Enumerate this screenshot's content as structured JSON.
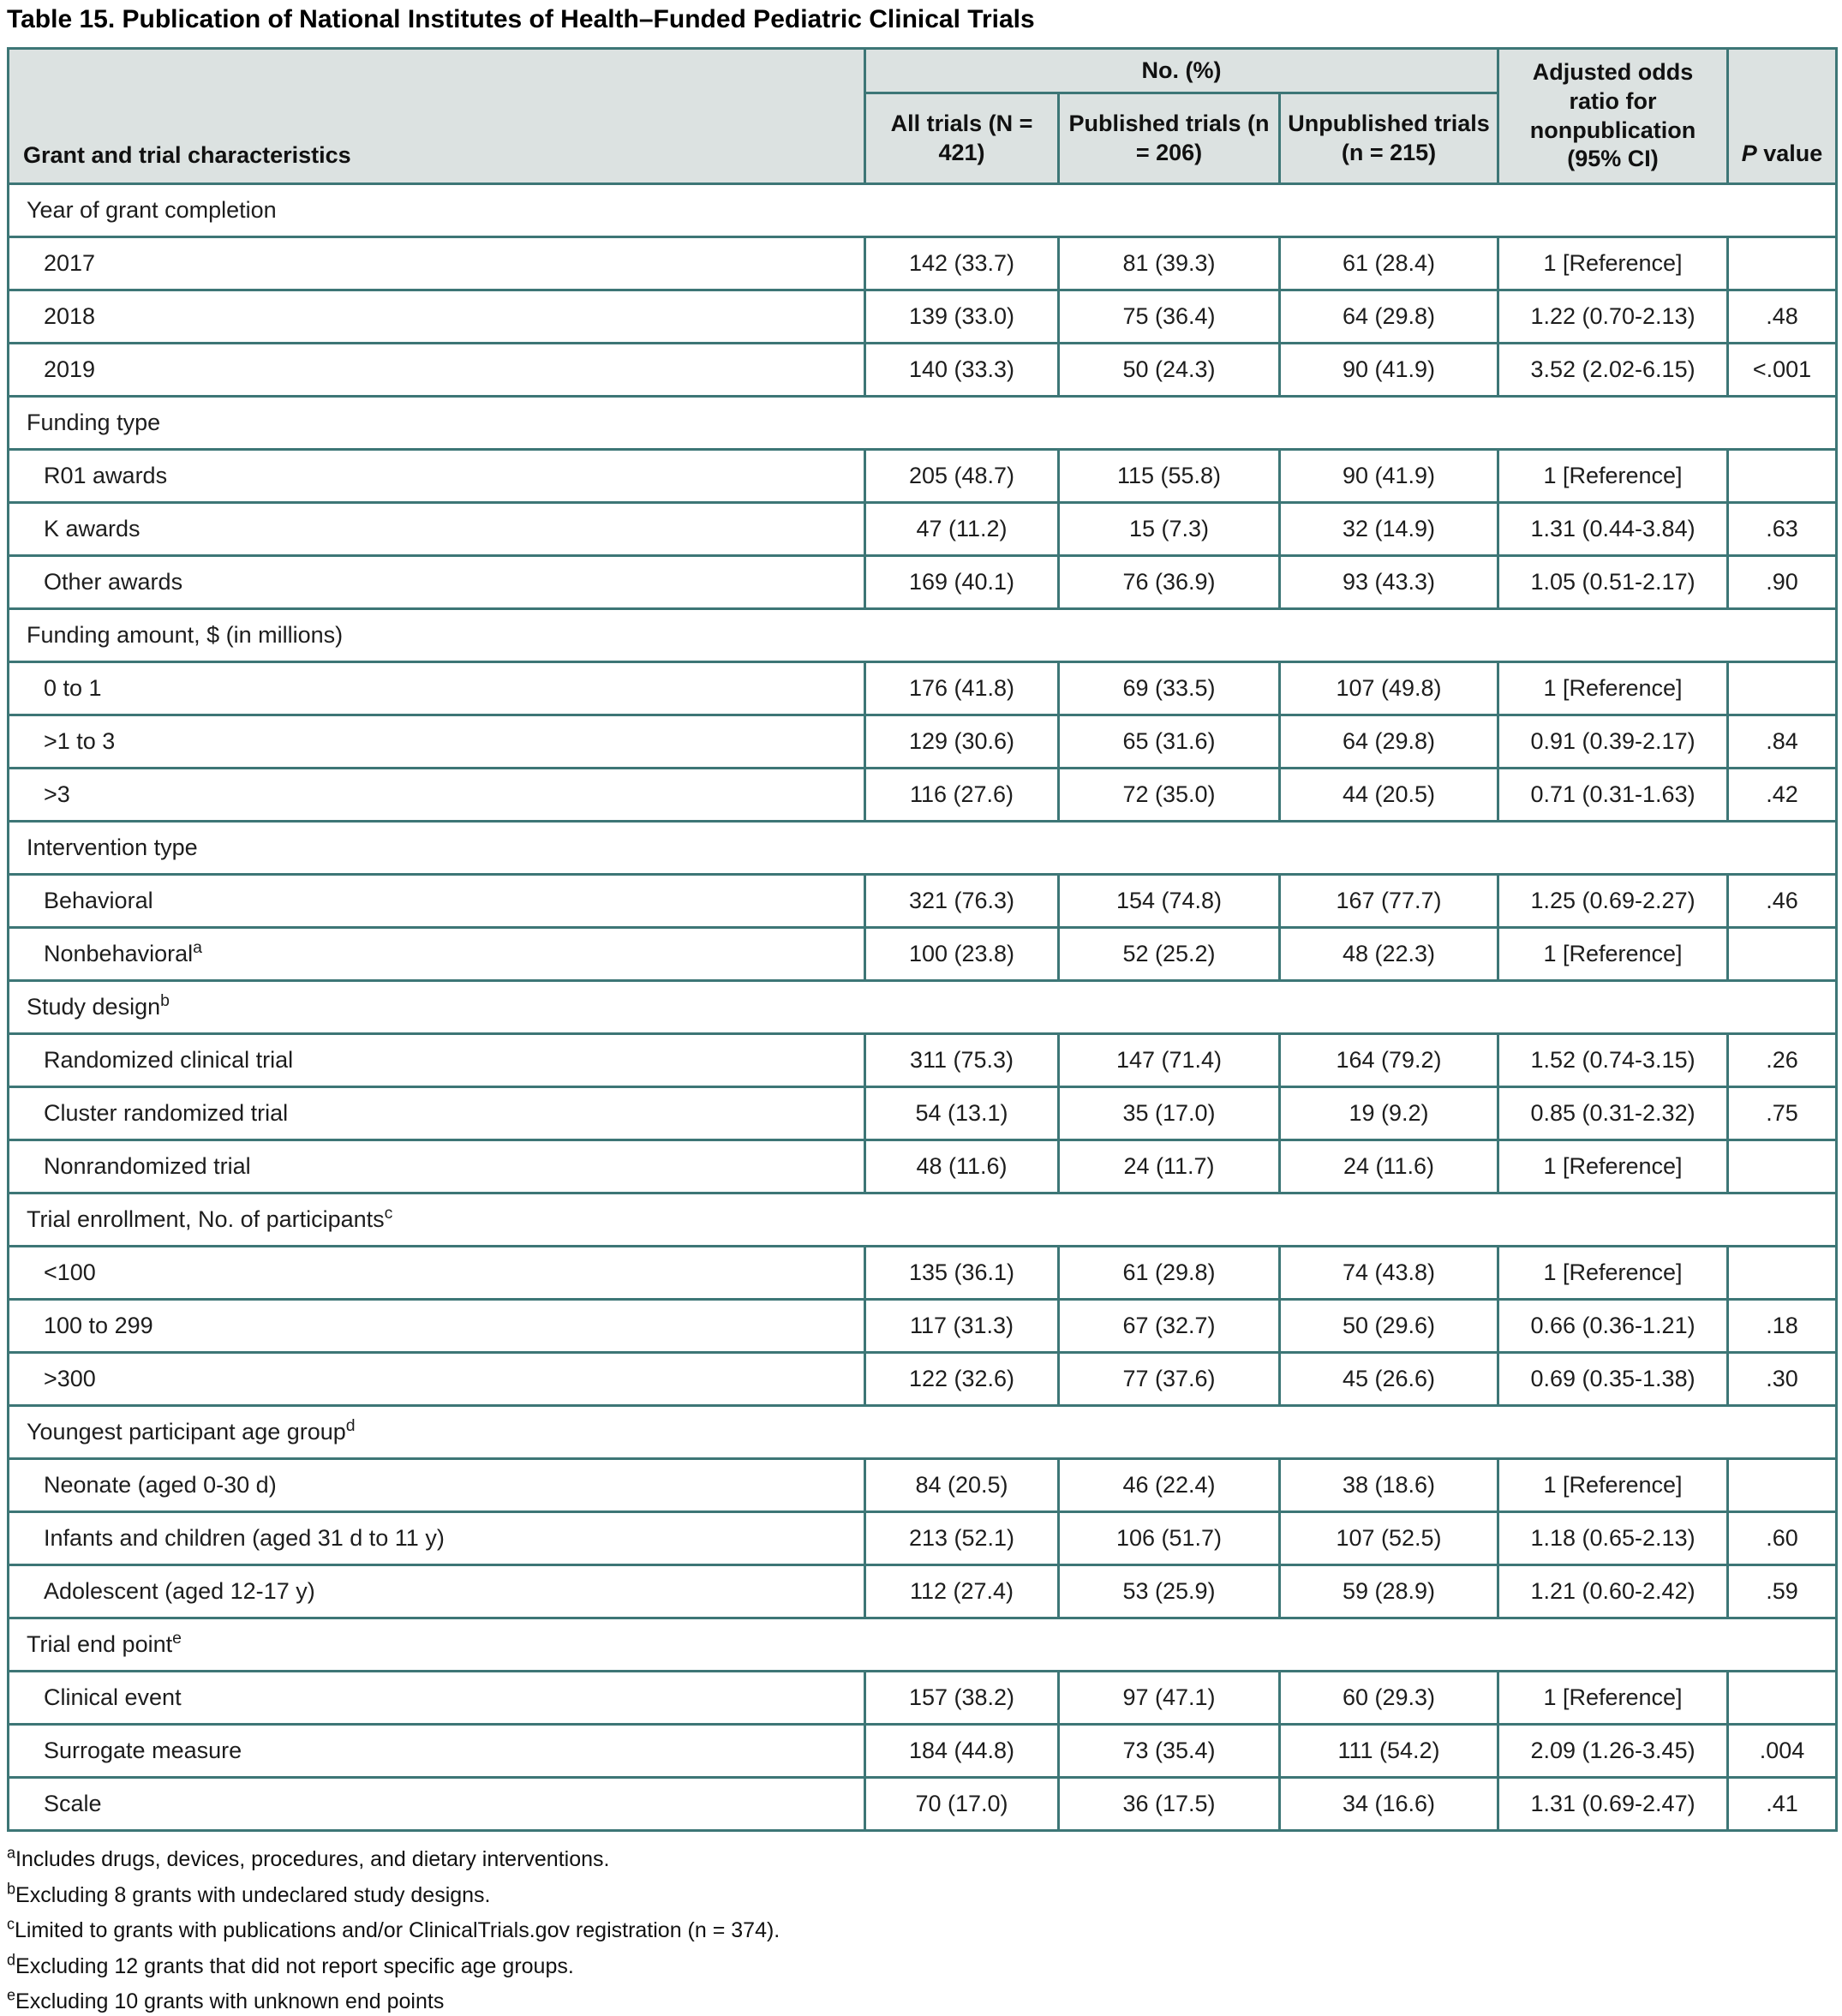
{
  "title": "Table 15. Publication of National Institutes of Health–Funded Pediatric Clinical Trials",
  "colors": {
    "border_teal": "#3d7676",
    "header_background": "#dce2e1",
    "text": "#1d1d1d"
  },
  "table": {
    "header": {
      "characteristics": "Grant and trial characteristics",
      "group": "No. (%)",
      "all_trials": "All trials (N = 421)",
      "published": "Published trials (n = 206)",
      "unpublished": "Unpublished trials (n = 215)",
      "odds_ratio": "Adjusted odds ratio for nonpublication (95% CI)",
      "p_italic": "P",
      "p_rest": " value"
    },
    "sections": [
      {
        "label": "Year of grant completion",
        "sup": "",
        "rows": [
          {
            "label": "2017",
            "sup": "",
            "cells": [
              "142 (33.7)",
              "81 (39.3)",
              "61 (28.4)",
              "1 [Reference]",
              ""
            ]
          },
          {
            "label": "2018",
            "sup": "",
            "cells": [
              "139 (33.0)",
              "75 (36.4)",
              "64 (29.8)",
              "1.22 (0.70-2.13)",
              ".48"
            ]
          },
          {
            "label": "2019",
            "sup": "",
            "cells": [
              "140 (33.3)",
              "50 (24.3)",
              "90 (41.9)",
              "3.52 (2.02-6.15)",
              "<.001"
            ]
          }
        ]
      },
      {
        "label": "Funding type",
        "sup": "",
        "rows": [
          {
            "label": "R01 awards",
            "sup": "",
            "cells": [
              "205 (48.7)",
              "115 (55.8)",
              "90 (41.9)",
              "1 [Reference]",
              ""
            ]
          },
          {
            "label": "K awards",
            "sup": "",
            "cells": [
              "47 (11.2)",
              "15 (7.3)",
              "32 (14.9)",
              "1.31 (0.44-3.84)",
              ".63"
            ]
          },
          {
            "label": "Other awards",
            "sup": "",
            "cells": [
              "169 (40.1)",
              "76 (36.9)",
              "93 (43.3)",
              "1.05 (0.51-2.17)",
              ".90"
            ]
          }
        ]
      },
      {
        "label": "Funding amount, $ (in millions)",
        "sup": "",
        "rows": [
          {
            "label": "0 to 1",
            "sup": "",
            "cells": [
              "176 (41.8)",
              "69 (33.5)",
              "107 (49.8)",
              "1 [Reference]",
              ""
            ]
          },
          {
            "label": ">1 to 3",
            "sup": "",
            "cells": [
              "129 (30.6)",
              "65 (31.6)",
              "64 (29.8)",
              "0.91 (0.39-2.17)",
              ".84"
            ]
          },
          {
            "label": ">3",
            "sup": "",
            "cells": [
              "116 (27.6)",
              "72 (35.0)",
              "44 (20.5)",
              "0.71 (0.31-1.63)",
              ".42"
            ]
          }
        ]
      },
      {
        "label": "Intervention type",
        "sup": "",
        "rows": [
          {
            "label": "Behavioral",
            "sup": "",
            "cells": [
              "321 (76.3)",
              "154 (74.8)",
              "167 (77.7)",
              "1.25 (0.69-2.27)",
              ".46"
            ]
          },
          {
            "label": "Nonbehavioral",
            "sup": "a",
            "cells": [
              "100 (23.8)",
              "52 (25.2)",
              "48 (22.3)",
              "1 [Reference]",
              ""
            ]
          }
        ]
      },
      {
        "label": "Study design",
        "sup": "b",
        "rows": [
          {
            "label": "Randomized clinical trial",
            "sup": "",
            "cells": [
              "311 (75.3)",
              "147 (71.4)",
              "164 (79.2)",
              "1.52 (0.74-3.15)",
              ".26"
            ]
          },
          {
            "label": "Cluster randomized trial",
            "sup": "",
            "cells": [
              "54 (13.1)",
              "35 (17.0)",
              "19 (9.2)",
              "0.85 (0.31-2.32)",
              ".75"
            ]
          },
          {
            "label": "Nonrandomized trial",
            "sup": "",
            "cells": [
              "48 (11.6)",
              "24 (11.7)",
              "24 (11.6)",
              "1 [Reference]",
              ""
            ]
          }
        ]
      },
      {
        "label": "Trial enrollment, No. of participants",
        "sup": "c",
        "rows": [
          {
            "label": "<100",
            "sup": "",
            "cells": [
              "135 (36.1)",
              "61 (29.8)",
              "74 (43.8)",
              "1 [Reference]",
              ""
            ]
          },
          {
            "label": "100 to 299",
            "sup": "",
            "cells": [
              "117 (31.3)",
              "67 (32.7)",
              "50 (29.6)",
              "0.66 (0.36-1.21)",
              ".18"
            ]
          },
          {
            "label": ">300",
            "sup": "",
            "cells": [
              "122 (32.6)",
              "77 (37.6)",
              "45 (26.6)",
              "0.69 (0.35-1.38)",
              ".30"
            ]
          }
        ]
      },
      {
        "label": "Youngest participant age group",
        "sup": "d",
        "rows": [
          {
            "label": "Neonate (aged 0-30 d)",
            "sup": "",
            "cells": [
              "84 (20.5)",
              "46 (22.4)",
              "38 (18.6)",
              "1 [Reference]",
              ""
            ]
          },
          {
            "label": "Infants and children (aged 31 d to 11 y)",
            "sup": "",
            "cells": [
              "213 (52.1)",
              "106 (51.7)",
              "107 (52.5)",
              "1.18 (0.65-2.13)",
              ".60"
            ]
          },
          {
            "label": "Adolescent (aged 12-17 y)",
            "sup": "",
            "cells": [
              "112 (27.4)",
              "53 (25.9)",
              "59 (28.9)",
              "1.21 (0.60-2.42)",
              ".59"
            ]
          }
        ]
      },
      {
        "label": "Trial end point",
        "sup": "e",
        "rows": [
          {
            "label": "Clinical event",
            "sup": "",
            "cells": [
              "157 (38.2)",
              "97 (47.1)",
              "60 (29.3)",
              "1 [Reference]",
              ""
            ]
          },
          {
            "label": "Surrogate measure",
            "sup": "",
            "cells": [
              "184 (44.8)",
              "73 (35.4)",
              "111 (54.2)",
              "2.09 (1.26-3.45)",
              ".004"
            ]
          },
          {
            "label": "Scale",
            "sup": "",
            "cells": [
              "70 (17.0)",
              "36 (17.5)",
              "34 (16.6)",
              "1.31 (0.69-2.47)",
              ".41"
            ]
          }
        ]
      }
    ]
  },
  "footnotes": [
    {
      "sup": "a",
      "text": "Includes drugs, devices, procedures, and dietary interventions."
    },
    {
      "sup": "b",
      "text": "Excluding 8 grants with undeclared study designs."
    },
    {
      "sup": "c",
      "text": "Limited to grants with publications and/or ClinicalTrials.gov registration (n = 374)."
    },
    {
      "sup": "d",
      "text": "Excluding 12 grants that did not report specific age groups."
    },
    {
      "sup": "e",
      "text": "Excluding 10 grants with unknown end points"
    }
  ]
}
